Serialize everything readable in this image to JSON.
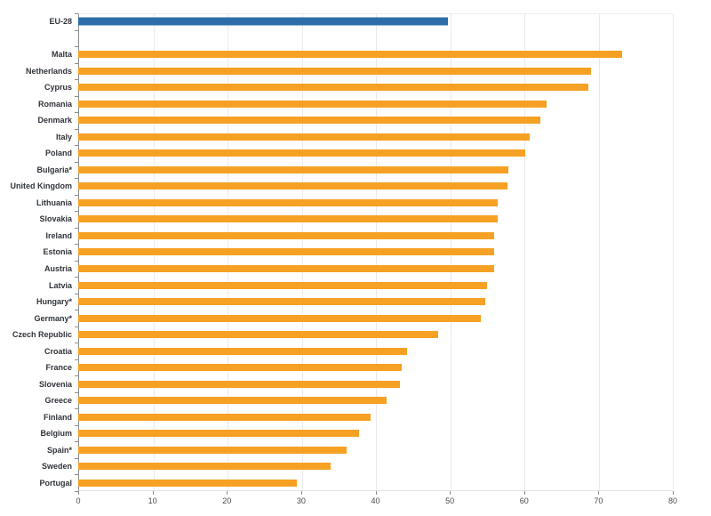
{
  "colors": {
    "eu_bar": "#2e6da8",
    "country_bar": "#f6a124",
    "axis": "#8c8c8c",
    "gridline": "#eaeaea",
    "label_text": "#30343a",
    "tick_text": "#4a4a4a"
  },
  "chart_data": {
    "type": "bar",
    "orientation": "horizontal",
    "title": "",
    "xlabel": "",
    "ylabel": "",
    "xlim": [
      0,
      80
    ],
    "x_ticks": [
      "0",
      "10",
      "20",
      "30",
      "40",
      "50",
      "60",
      "70",
      "80"
    ],
    "grid": true,
    "legend": null,
    "eu_aggregate": {
      "label": "EU-28",
      "value": 49.8
    },
    "categories": [
      "Malta",
      "Netherlands",
      "Cyprus",
      "Romania",
      "Denmark",
      "Italy",
      "Poland",
      "Bulgaria*",
      "United Kingdom",
      "Lithuania",
      "Slovakia",
      "Ireland",
      "Estonia",
      "Austria",
      "Latvia",
      "Hungary*",
      "Germany*",
      "Czech Republic",
      "Croatia",
      "France",
      "Slovenia",
      "Greece",
      "Finland",
      "Belgium",
      "Spain*",
      "Sweden",
      "Portugal"
    ],
    "values": [
      73.2,
      69.0,
      68.6,
      63.0,
      62.2,
      60.7,
      60.2,
      57.9,
      57.7,
      56.4,
      56.4,
      56.0,
      56.0,
      56.0,
      55.0,
      54.8,
      54.2,
      48.4,
      44.3,
      43.5,
      43.3,
      41.5,
      39.3,
      37.8,
      36.1,
      34.0,
      29.4
    ]
  }
}
